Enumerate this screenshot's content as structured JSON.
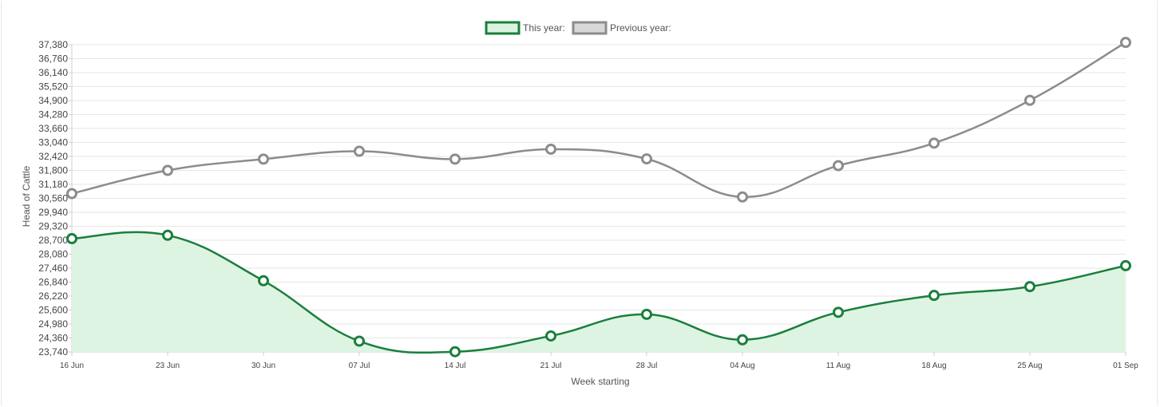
{
  "chart_data": {
    "type": "line",
    "xlabel": "Week starting",
    "ylabel": "Head of Cattle",
    "categories": [
      "16 Jun",
      "23 Jun",
      "30 Jun",
      "07 Jul",
      "14 Jul",
      "21 Jul",
      "28 Jul",
      "04 Aug",
      "11 Aug",
      "18 Aug",
      "25 Aug",
      "01 Sep"
    ],
    "ylim": [
      23740,
      37380
    ],
    "yticks": [
      23740,
      24360,
      24980,
      25600,
      26220,
      26840,
      27460,
      28080,
      28700,
      29320,
      29940,
      30560,
      31180,
      31800,
      32420,
      33040,
      33660,
      34280,
      34900,
      35520,
      36140,
      36760,
      37380
    ],
    "ytick_labels": [
      "23,740",
      "24,360",
      "24,980",
      "25,600",
      "26,220",
      "26,840",
      "27,460",
      "28,080",
      "28,700",
      "29,320",
      "29,940",
      "30,560",
      "31,180",
      "31,800",
      "32,420",
      "33,040",
      "33,660",
      "34,280",
      "34,900",
      "35,520",
      "36,140",
      "36,760",
      "37,380"
    ],
    "grid": true,
    "legend_position": "top-center",
    "series": [
      {
        "name": "This year:",
        "color": "#1a7f3c",
        "fill": "#dcf3e2",
        "values": [
          28770,
          28920,
          26900,
          24220,
          23750,
          24450,
          25410,
          24280,
          25500,
          26250,
          26640,
          27570
        ]
      },
      {
        "name": "Previous year:",
        "color": "#8c8c8c",
        "fill": "#d8d8d8",
        "values": [
          30770,
          31800,
          32300,
          32650,
          32300,
          32740,
          32310,
          30620,
          32010,
          33010,
          34910,
          37480
        ]
      }
    ]
  }
}
